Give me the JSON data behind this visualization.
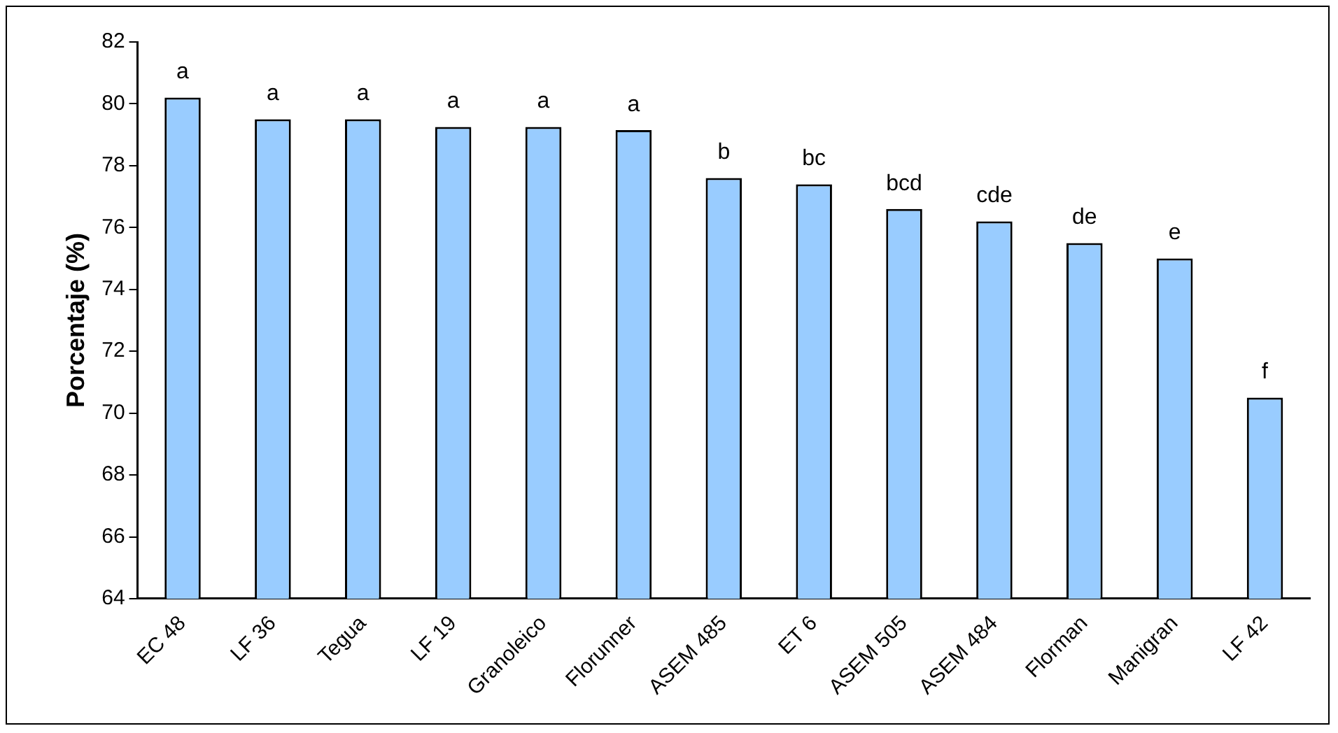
{
  "chart_data": {
    "type": "bar",
    "ylabel": "Porcentaje (%)",
    "categories": [
      "EC 48",
      "LF 36",
      "Tegua",
      "LF 19",
      "Granoleico",
      "Florunner",
      "ASEM 485",
      "ET 6",
      "ASEM 505",
      "ASEM 484",
      "Florman",
      "Manigran",
      "LF 42"
    ],
    "values": [
      80.2,
      79.5,
      79.5,
      79.25,
      79.25,
      79.15,
      77.6,
      77.4,
      76.6,
      76.2,
      75.5,
      75.0,
      70.5
    ],
    "color": "#99ccff",
    "ylim": [
      64,
      82
    ],
    "yticks": [
      64,
      66,
      68,
      70,
      72,
      74,
      76,
      78,
      80,
      82
    ],
    "grid": false,
    "legend": false,
    "annotations": [
      {
        "text": "a",
        "x": "EC 48",
        "y": 80.2
      },
      {
        "text": "a",
        "x": "LF 36",
        "y": 79.5
      },
      {
        "text": "a",
        "x": "Tegua",
        "y": 79.5
      },
      {
        "text": "a",
        "x": "LF 19",
        "y": 79.25
      },
      {
        "text": "a",
        "x": "Granoleico",
        "y": 79.25
      },
      {
        "text": "a",
        "x": "Florunner",
        "y": 79.15
      },
      {
        "text": "b",
        "x": "ASEM 485",
        "y": 77.6
      },
      {
        "text": "bc",
        "x": "ET 6",
        "y": 77.4
      },
      {
        "text": "bcd",
        "x": "ASEM 505",
        "y": 76.6
      },
      {
        "text": "cde",
        "x": "ASEM 484",
        "y": 76.2
      },
      {
        "text": "de",
        "x": "Florman",
        "y": 75.5
      },
      {
        "text": "e",
        "x": "Manigran",
        "y": 75.0
      },
      {
        "text": "f",
        "x": "LF 42",
        "y": 70.5
      }
    ]
  }
}
